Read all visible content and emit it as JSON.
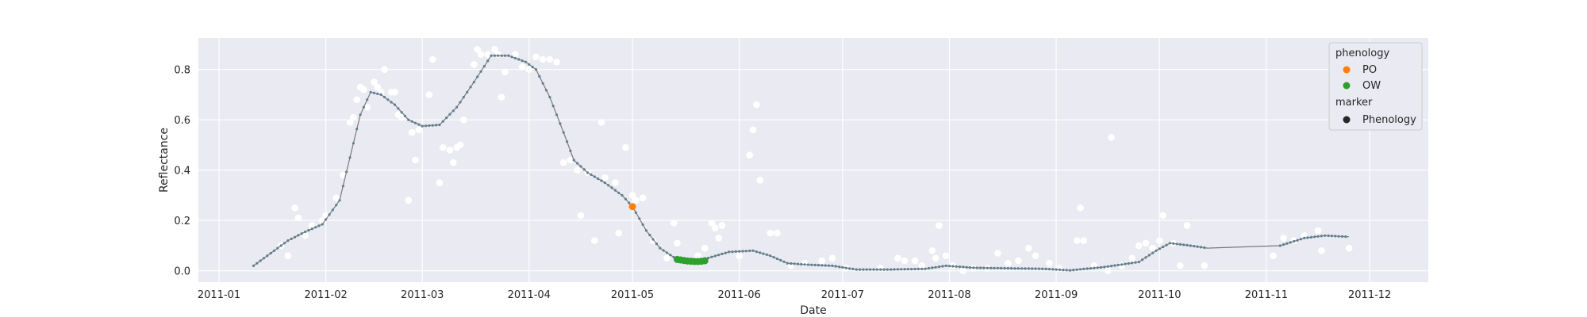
{
  "chart_data": {
    "type": "scatter",
    "xlabel": "Date",
    "ylabel": "Reflectance",
    "xlim": [
      "2010-12-26",
      "2011-12-18"
    ],
    "ylim": [
      -0.045,
      0.925
    ],
    "x_ticks": [
      "2011-01-01",
      "2011-02-01",
      "2011-03-01",
      "2011-04-01",
      "2011-05-01",
      "2011-06-01",
      "2011-07-01",
      "2011-08-01",
      "2011-09-01",
      "2011-10-01",
      "2011-11-01",
      "2011-12-01"
    ],
    "x_tick_labels": [
      "2011-01",
      "2011-02",
      "2011-03",
      "2011-04",
      "2011-05",
      "2011-06",
      "2011-07",
      "2011-08",
      "2011-09",
      "2011-10",
      "2011-11",
      "2011-12"
    ],
    "y_ticks": [
      0.0,
      0.2,
      0.4,
      0.6,
      0.8
    ],
    "y_tick_labels": [
      "0.0",
      "0.2",
      "0.4",
      "0.6",
      "0.8"
    ],
    "grid": true,
    "background": "#eaeaf2",
    "legend": {
      "placement": "top-right",
      "title_1": "phenology",
      "title_2": "marker",
      "entries": [
        {
          "label": "PO",
          "color": "#ff7f0e"
        },
        {
          "label": "OW",
          "color": "#2ca02c"
        },
        {
          "label": "Phenology",
          "color": "#262626"
        }
      ]
    },
    "fitted_curve": {
      "color": "#5f7f8f",
      "points": [
        [
          "2011-01-11",
          0.02
        ],
        [
          "2011-01-16",
          0.07
        ],
        [
          "2011-01-21",
          0.12
        ],
        [
          "2011-01-26",
          0.155
        ],
        [
          "2011-01-31",
          0.185
        ],
        [
          "2011-02-05",
          0.28
        ],
        [
          "2011-02-08",
          0.45
        ],
        [
          "2011-02-11",
          0.62
        ],
        [
          "2011-02-14",
          0.71
        ],
        [
          "2011-02-17",
          0.7
        ],
        [
          "2011-02-21",
          0.66
        ],
        [
          "2011-02-25",
          0.6
        ],
        [
          "2011-03-01",
          0.575
        ],
        [
          "2011-03-06",
          0.58
        ],
        [
          "2011-03-11",
          0.65
        ],
        [
          "2011-03-16",
          0.75
        ],
        [
          "2011-03-21",
          0.855
        ],
        [
          "2011-03-26",
          0.855
        ],
        [
          "2011-03-31",
          0.83
        ],
        [
          "2011-04-03",
          0.8
        ],
        [
          "2011-04-07",
          0.69
        ],
        [
          "2011-04-11",
          0.55
        ],
        [
          "2011-04-14",
          0.44
        ],
        [
          "2011-04-18",
          0.39
        ],
        [
          "2011-04-23",
          0.35
        ],
        [
          "2011-04-28",
          0.3
        ],
        [
          "2011-05-01",
          0.255
        ],
        [
          "2011-05-05",
          0.16
        ],
        [
          "2011-05-09",
          0.09
        ],
        [
          "2011-05-14",
          0.045
        ],
        [
          "2011-05-19",
          0.035
        ],
        [
          "2011-05-24",
          0.055
        ],
        [
          "2011-05-29",
          0.075
        ],
        [
          "2011-06-05",
          0.08
        ],
        [
          "2011-06-10",
          0.06
        ],
        [
          "2011-06-15",
          0.03
        ],
        [
          "2011-06-20",
          0.025
        ],
        [
          "2011-06-28",
          0.02
        ],
        [
          "2011-07-05",
          0.005
        ],
        [
          "2011-07-15",
          0.005
        ],
        [
          "2011-07-25",
          0.008
        ],
        [
          "2011-07-31",
          0.02
        ],
        [
          "2011-08-08",
          0.012
        ],
        [
          "2011-08-18",
          0.01
        ],
        [
          "2011-08-28",
          0.008
        ],
        [
          "2011-09-05",
          0.002
        ],
        [
          "2011-09-15",
          0.015
        ],
        [
          "2011-09-25",
          0.035
        ],
        [
          "2011-09-30",
          0.08
        ],
        [
          "2011-10-04",
          0.11
        ],
        [
          "2011-10-10",
          0.1
        ],
        [
          "2011-10-15",
          0.09
        ],
        [
          "2011-11-05",
          0.1
        ],
        [
          "2011-11-12",
          0.13
        ],
        [
          "2011-11-18",
          0.14
        ],
        [
          "2011-11-25",
          0.135
        ]
      ]
    },
    "observations": {
      "color": "#ffffff",
      "points": [
        [
          "2011-01-19",
          0.1
        ],
        [
          "2011-01-21",
          0.06
        ],
        [
          "2011-01-23",
          0.25
        ],
        [
          "2011-01-24",
          0.21
        ],
        [
          "2011-01-26",
          0.14
        ],
        [
          "2011-01-28",
          0.18
        ],
        [
          "2011-01-31",
          0.2
        ],
        [
          "2011-02-01",
          0.22
        ],
        [
          "2011-02-04",
          0.29
        ],
        [
          "2011-02-06",
          0.38
        ],
        [
          "2011-02-08",
          0.59
        ],
        [
          "2011-02-09",
          0.61
        ],
        [
          "2011-02-10",
          0.68
        ],
        [
          "2011-02-11",
          0.73
        ],
        [
          "2011-02-12",
          0.72
        ],
        [
          "2011-02-13",
          0.65
        ],
        [
          "2011-02-15",
          0.75
        ],
        [
          "2011-02-16",
          0.73
        ],
        [
          "2011-02-17",
          0.71
        ],
        [
          "2011-02-18",
          0.8
        ],
        [
          "2011-02-20",
          0.71
        ],
        [
          "2011-02-21",
          0.71
        ],
        [
          "2011-02-22",
          0.62
        ],
        [
          "2011-02-23",
          0.61
        ],
        [
          "2011-02-25",
          0.28
        ],
        [
          "2011-02-26",
          0.55
        ],
        [
          "2011-02-27",
          0.44
        ],
        [
          "2011-02-28",
          0.56
        ],
        [
          "2011-03-03",
          0.7
        ],
        [
          "2011-03-04",
          0.84
        ],
        [
          "2011-03-06",
          0.35
        ],
        [
          "2011-03-07",
          0.49
        ],
        [
          "2011-03-09",
          0.48
        ],
        [
          "2011-03-10",
          0.43
        ],
        [
          "2011-03-11",
          0.49
        ],
        [
          "2011-03-12",
          0.5
        ],
        [
          "2011-03-13",
          0.6
        ],
        [
          "2011-03-16",
          0.82
        ],
        [
          "2011-03-17",
          0.88
        ],
        [
          "2011-03-18",
          0.86
        ],
        [
          "2011-03-20",
          0.86
        ],
        [
          "2011-03-22",
          0.88
        ],
        [
          "2011-03-23",
          0.86
        ],
        [
          "2011-03-24",
          0.69
        ],
        [
          "2011-03-25",
          0.79
        ],
        [
          "2011-03-28",
          0.86
        ],
        [
          "2011-03-30",
          0.81
        ],
        [
          "2011-04-01",
          0.8
        ],
        [
          "2011-04-03",
          0.85
        ],
        [
          "2011-04-05",
          0.84
        ],
        [
          "2011-04-07",
          0.84
        ],
        [
          "2011-04-09",
          0.83
        ],
        [
          "2011-04-11",
          0.43
        ],
        [
          "2011-04-13",
          0.44
        ],
        [
          "2011-04-15",
          0.4
        ],
        [
          "2011-04-16",
          0.22
        ],
        [
          "2011-04-18",
          0.39
        ],
        [
          "2011-04-20",
          0.12
        ],
        [
          "2011-04-22",
          0.59
        ],
        [
          "2011-04-23",
          0.37
        ],
        [
          "2011-04-26",
          0.35
        ],
        [
          "2011-04-27",
          0.15
        ],
        [
          "2011-04-29",
          0.49
        ],
        [
          "2011-05-01",
          0.3
        ],
        [
          "2011-05-02",
          0.28
        ],
        [
          "2011-05-04",
          0.29
        ],
        [
          "2011-05-07",
          0.12
        ],
        [
          "2011-05-11",
          0.05
        ],
        [
          "2011-05-13",
          0.19
        ],
        [
          "2011-05-14",
          0.11
        ],
        [
          "2011-05-20",
          0.06
        ],
        [
          "2011-05-22",
          0.09
        ],
        [
          "2011-05-24",
          0.19
        ],
        [
          "2011-05-25",
          0.17
        ],
        [
          "2011-05-26",
          0.13
        ],
        [
          "2011-05-27",
          0.18
        ],
        [
          "2011-06-01",
          0.06
        ],
        [
          "2011-06-04",
          0.46
        ],
        [
          "2011-06-05",
          0.56
        ],
        [
          "2011-06-06",
          0.66
        ],
        [
          "2011-06-07",
          0.36
        ],
        [
          "2011-06-10",
          0.15
        ],
        [
          "2011-06-12",
          0.15
        ],
        [
          "2011-06-16",
          0.02
        ],
        [
          "2011-06-20",
          0.03
        ],
        [
          "2011-06-25",
          0.04
        ],
        [
          "2011-06-28",
          0.05
        ],
        [
          "2011-07-02",
          0.01
        ],
        [
          "2011-07-12",
          0.01
        ],
        [
          "2011-07-17",
          0.05
        ],
        [
          "2011-07-19",
          0.04
        ],
        [
          "2011-07-22",
          0.04
        ],
        [
          "2011-07-24",
          0.02
        ],
        [
          "2011-07-27",
          0.08
        ],
        [
          "2011-07-28",
          0.05
        ],
        [
          "2011-07-29",
          0.18
        ],
        [
          "2011-07-31",
          0.06
        ],
        [
          "2011-08-02",
          0.02
        ],
        [
          "2011-08-05",
          0.0
        ],
        [
          "2011-08-08",
          0.01
        ],
        [
          "2011-08-12",
          0.01
        ],
        [
          "2011-08-15",
          0.07
        ],
        [
          "2011-08-18",
          0.03
        ],
        [
          "2011-08-21",
          0.04
        ],
        [
          "2011-08-24",
          0.09
        ],
        [
          "2011-08-26",
          0.06
        ],
        [
          "2011-08-30",
          0.03
        ],
        [
          "2011-09-02",
          0.01
        ],
        [
          "2011-09-07",
          0.12
        ],
        [
          "2011-09-08",
          0.25
        ],
        [
          "2011-09-09",
          0.12
        ],
        [
          "2011-09-12",
          0.02
        ],
        [
          "2011-09-16",
          0.0
        ],
        [
          "2011-09-17",
          0.53
        ],
        [
          "2011-09-20",
          0.02
        ],
        [
          "2011-09-23",
          0.05
        ],
        [
          "2011-09-25",
          0.1
        ],
        [
          "2011-09-27",
          0.11
        ],
        [
          "2011-09-29",
          0.09
        ],
        [
          "2011-10-01",
          0.12
        ],
        [
          "2011-10-02",
          0.22
        ],
        [
          "2011-10-05",
          0.11
        ],
        [
          "2011-10-07",
          0.02
        ],
        [
          "2011-10-09",
          0.18
        ],
        [
          "2011-10-14",
          0.02
        ],
        [
          "2011-11-03",
          0.06
        ],
        [
          "2011-11-06",
          0.13
        ],
        [
          "2011-11-09",
          0.12
        ],
        [
          "2011-11-12",
          0.14
        ],
        [
          "2011-11-16",
          0.16
        ],
        [
          "2011-11-17",
          0.08
        ],
        [
          "2011-11-25",
          0.09
        ]
      ]
    },
    "phenology_points": [
      {
        "label": "PO",
        "color": "#ff7f0e",
        "points": [
          [
            "2011-05-01",
            0.255
          ]
        ]
      },
      {
        "label": "OW",
        "color": "#2ca02c",
        "points": [
          [
            "2011-05-14",
            0.045
          ],
          [
            "2011-05-15",
            0.043
          ],
          [
            "2011-05-16",
            0.041
          ],
          [
            "2011-05-17",
            0.039
          ],
          [
            "2011-05-18",
            0.038
          ],
          [
            "2011-05-19",
            0.037
          ],
          [
            "2011-05-20",
            0.037
          ],
          [
            "2011-05-21",
            0.038
          ],
          [
            "2011-05-22",
            0.04
          ]
        ]
      }
    ]
  }
}
